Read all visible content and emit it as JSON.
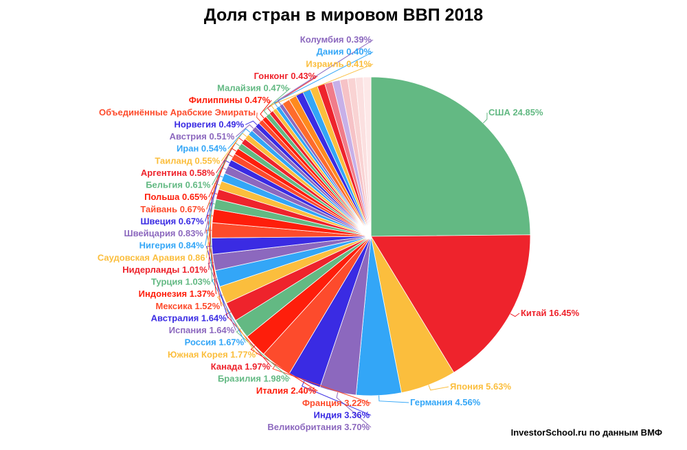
{
  "chart_data": {
    "type": "pie",
    "title": "Доля стран в мировом ВВП 2018",
    "credit": "InvestorSchool.ru по данным ВМФ",
    "slices": [
      {
        "label": "США 24.85%",
        "value": 24.85,
        "color": "#63b983"
      },
      {
        "label": "Китай 16.45%",
        "value": 16.45,
        "color": "#ee232c"
      },
      {
        "label": "Япония 5.63%",
        "value": 5.63,
        "color": "#fbbe3d"
      },
      {
        "label": "Германия 4.56%",
        "value": 4.56,
        "color": "#33a6f7"
      },
      {
        "label": "Великобритания 3.70%",
        "value": 3.7,
        "color": "#8c68be"
      },
      {
        "label": "Индия 3.36%",
        "value": 3.36,
        "color": "#3a2be3"
      },
      {
        "label": "Франция 3.22%",
        "value": 3.22,
        "color": "#fd4b2c"
      },
      {
        "label": "Италия 2.40%",
        "value": 2.4,
        "color": "#fe1e0b"
      },
      {
        "label": "Бразилия 1.98%",
        "value": 1.98,
        "color": "#63b983"
      },
      {
        "label": "Канада 1.97%",
        "value": 1.97,
        "color": "#ee232c"
      },
      {
        "label": "Южная Корея 1.77%",
        "value": 1.77,
        "color": "#fbbe3d"
      },
      {
        "label": "Россия 1.67%",
        "value": 1.67,
        "color": "#33a6f7"
      },
      {
        "label": "Испания 1.64%",
        "value": 1.64,
        "color": "#8c68be"
      },
      {
        "label": "Австралия 1.64%",
        "value": 1.64,
        "color": "#3a2be3"
      },
      {
        "label": "Мексика 1.52%",
        "value": 1.52,
        "color": "#fd4b2c"
      },
      {
        "label": "Индонезия 1.37%",
        "value": 1.37,
        "color": "#fe1e0b"
      },
      {
        "label": "Турция 1.03%",
        "value": 1.03,
        "color": "#63b983"
      },
      {
        "label": "Нидерланды 1.01%",
        "value": 1.01,
        "color": "#ee232c"
      },
      {
        "label": "Саудовская Аравия 0.86",
        "value": 0.86,
        "color": "#fbbe3d"
      },
      {
        "label": "Нигерия 0.84%",
        "value": 0.84,
        "color": "#33a6f7"
      },
      {
        "label": "Швейцария 0.83%",
        "value": 0.83,
        "color": "#8c68be"
      },
      {
        "label": "Швеция 0.67%",
        "value": 0.67,
        "color": "#3a2be3"
      },
      {
        "label": "Тайвань 0.67%",
        "value": 0.67,
        "color": "#fd4b2c"
      },
      {
        "label": "Польша 0.65%",
        "value": 0.65,
        "color": "#fe1e0b"
      },
      {
        "label": "Бельгия 0.61%",
        "value": 0.61,
        "color": "#63b983"
      },
      {
        "label": "Аргентина 0.58%",
        "value": 0.58,
        "color": "#ee232c"
      },
      {
        "label": "Таиланд 0.55%",
        "value": 0.55,
        "color": "#fbbe3d"
      },
      {
        "label": "Иран 0.54%",
        "value": 0.54,
        "color": "#33a6f7"
      },
      {
        "label": "Австрия 0.51%",
        "value": 0.51,
        "color": "#8c68be"
      },
      {
        "label": "Норвегия 0.49%",
        "value": 0.49,
        "color": "#3a2be3"
      },
      {
        "label": "Объединённые Арабские Эмираты",
        "value": 0.49,
        "color": "#fd4b2c"
      },
      {
        "label": "Филиппины 0.47%",
        "value": 0.47,
        "color": "#fe1e0b"
      },
      {
        "label": "Малайзия 0.47%",
        "value": 0.47,
        "color": "#63b983"
      },
      {
        "label": "Гонконг 0.43%",
        "value": 0.43,
        "color": "#ee232c"
      },
      {
        "label": "Израиль 0.41%",
        "value": 0.41,
        "color": "#fbbe3d"
      },
      {
        "label": "Дания 0.40%",
        "value": 0.4,
        "color": "#33a6f7"
      },
      {
        "label": "Колумбия 0.39%",
        "value": 0.39,
        "color": "#8c68be"
      }
    ],
    "other_slice_colors": [
      "#fe6b2c",
      "#fe8a1e",
      "#3a2be3",
      "#33a6f7",
      "#fbbe3d",
      "#ee232c",
      "#f07c8a",
      "#c7b0e8",
      "#f6c2c6",
      "#f9d3d3",
      "#fbe0e0",
      "#fde8e8"
    ]
  }
}
